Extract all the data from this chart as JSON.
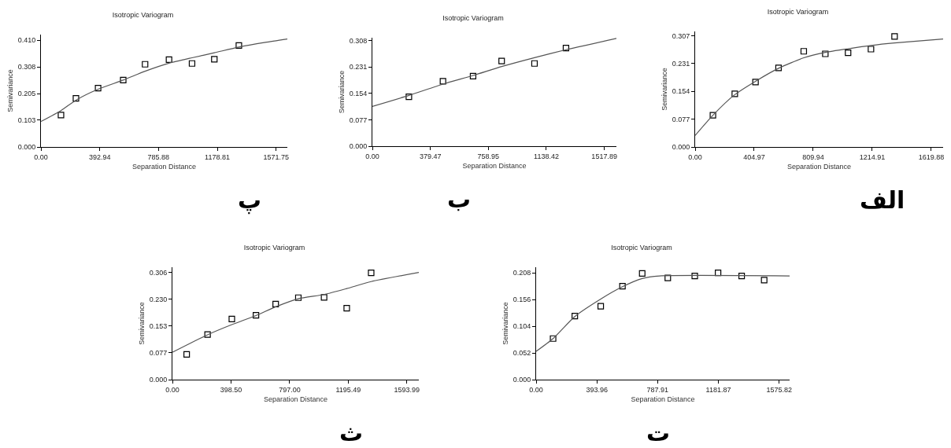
{
  "chart_data": [
    {
      "type": "scatter",
      "title": "Isotropic Variogram",
      "xlabel": "Separation Distance",
      "ylabel": "Semivariance",
      "annotations": [
        "پ"
      ],
      "grid": false,
      "xlim": [
        0,
        1647
      ],
      "xticks": [
        {
          "value": 0,
          "label": "0.00"
        },
        392.94,
        785.88,
        1178.81,
        1571.75
      ],
      "ylim": [
        0,
        0.432
      ],
      "yticks": [
        {
          "value": 0,
          "label": "0.000"
        },
        {
          "value": 0.103,
          "label": "0.103"
        },
        {
          "value": 0.205,
          "label": "0.205"
        },
        {
          "value": 0.308,
          "label": "0.308"
        },
        {
          "value": 0.41,
          "label": "0.410"
        }
      ],
      "series": [
        {
          "marker": "square",
          "color": "#000000",
          "x": [
            134,
            234,
            382,
            550,
            696,
            856,
            1010,
            1159,
            1323
          ],
          "values": [
            0.123,
            0.187,
            0.226,
            0.257,
            0.318,
            0.336,
            0.321,
            0.337,
            0.39
          ]
        },
        {
          "type": "line",
          "marker": "none",
          "color": "#555555",
          "x": [
            0,
            134,
            234,
            382,
            550,
            696,
            856,
            1010,
            1159,
            1323,
            1500,
            1647
          ],
          "values": [
            0.098,
            0.14,
            0.18,
            0.222,
            0.257,
            0.291,
            0.322,
            0.343,
            0.362,
            0.384,
            0.402,
            0.415
          ]
        }
      ]
    },
    {
      "type": "scatter",
      "title": "Isotropic Variogram",
      "xlabel": "Separation Distance",
      "ylabel": "Semivariance",
      "annotations": [
        "ب"
      ],
      "grid": false,
      "xlim": [
        0,
        1597
      ],
      "xticks": [
        {
          "value": 0,
          "label": "0.00"
        },
        379.47,
        758.95,
        1138.42,
        1517.89
      ],
      "ylim": [
        0,
        0.316
      ],
      "yticks": [
        {
          "value": 0,
          "label": "0.000"
        },
        0.077,
        0.154,
        0.231,
        0.308
      ],
      "series": [
        {
          "marker": "square",
          "color": "#000000",
          "x": [
            239,
            462,
            659,
            846,
            1061,
            1267
          ],
          "values": [
            0.144,
            0.189,
            0.204,
            0.248,
            0.241,
            0.286
          ]
        },
        {
          "type": "line",
          "marker": "none",
          "color": "#555555",
          "x": [
            0,
            239,
            462,
            659,
            846,
            1061,
            1267,
            1597
          ],
          "values": [
            0.116,
            0.148,
            0.181,
            0.206,
            0.232,
            0.258,
            0.281,
            0.314
          ]
        }
      ]
    },
    {
      "type": "scatter",
      "title": "Isotropic Variogram",
      "xlabel": "Separation Distance",
      "ylabel": "Semivariance",
      "annotations": [
        "الف"
      ],
      "grid": false,
      "xlim": [
        0,
        1701
      ],
      "xticks": [
        {
          "value": 0,
          "label": "0.00"
        },
        404.97,
        809.94,
        1214.91,
        1619.88
      ],
      "ylim": [
        0,
        0.32
      ],
      "yticks": [
        {
          "value": 0,
          "label": "0.000"
        },
        0.077,
        0.154,
        0.231,
        0.307
      ],
      "series": [
        {
          "marker": "square",
          "color": "#000000",
          "x": [
            122,
            272,
            414,
            572,
            745,
            893,
            1049,
            1206,
            1368
          ],
          "values": [
            0.088,
            0.147,
            0.18,
            0.219,
            0.265,
            0.258,
            0.261,
            0.271,
            0.306
          ]
        },
        {
          "type": "line",
          "marker": "none",
          "color": "#555555",
          "x": [
            0,
            122,
            272,
            414,
            572,
            745,
            893,
            1049,
            1206,
            1368,
            1701
          ],
          "values": [
            0.032,
            0.088,
            0.145,
            0.182,
            0.218,
            0.247,
            0.262,
            0.272,
            0.281,
            0.288,
            0.299
          ]
        }
      ]
    },
    {
      "type": "scatter",
      "title": "Isotropic Variogram",
      "xlabel": "Separation Distance",
      "ylabel": "Semivariance",
      "annotations": [
        "ث"
      ],
      "grid": false,
      "xlim": [
        0,
        1675
      ],
      "xticks": [
        {
          "value": 0,
          "label": "0.00"
        },
        {
          "value": 398.5,
          "label": "398.50"
        },
        {
          "value": 797,
          "label": "797.00"
        },
        1195.49,
        1593.99
      ],
      "ylim": [
        0,
        0.321
      ],
      "yticks": [
        {
          "value": 0,
          "label": "0.000"
        },
        0.077,
        0.153,
        {
          "value": 0.23,
          "label": "0.230"
        },
        0.306
      ],
      "series": [
        {
          "marker": "square",
          "color": "#000000",
          "x": [
            97,
            239,
            404,
            568,
            702,
            856,
            1031,
            1185,
            1351
          ],
          "values": [
            0.072,
            0.129,
            0.173,
            0.184,
            0.216,
            0.234,
            0.235,
            0.204,
            0.305
          ]
        },
        {
          "type": "line",
          "marker": "none",
          "color": "#555555",
          "x": [
            0,
            239,
            404,
            568,
            702,
            856,
            1031,
            1185,
            1351,
            1675
          ],
          "values": [
            0.078,
            0.128,
            0.157,
            0.183,
            0.208,
            0.231,
            0.243,
            0.26,
            0.28,
            0.306
          ]
        }
      ]
    },
    {
      "type": "scatter",
      "title": "Isotropic Variogram",
      "xlabel": "Separation Distance",
      "ylabel": "Semivariance",
      "annotations": [
        "ت"
      ],
      "grid": false,
      "xlim": [
        0,
        1644
      ],
      "xticks": [
        {
          "value": 0,
          "label": "0.00"
        },
        393.96,
        787.91,
        1181.87,
        1575.82
      ],
      "ylim": [
        0,
        0.219
      ],
      "yticks": [
        {
          "value": 0,
          "label": "0.000"
        },
        0.052,
        0.104,
        0.156,
        0.208
      ],
      "series": [
        {
          "marker": "square",
          "color": "#000000",
          "x": [
            110,
            251,
            419,
            560,
            688,
            854,
            1029,
            1180,
            1333,
            1479
          ],
          "values": [
            0.08,
            0.124,
            0.143,
            0.182,
            0.207,
            0.198,
            0.202,
            0.208,
            0.202,
            0.194
          ]
        },
        {
          "type": "line",
          "marker": "none",
          "color": "#555555",
          "x": [
            0,
            110,
            251,
            419,
            560,
            688,
            800,
            1644
          ],
          "values": [
            0.055,
            0.08,
            0.123,
            0.157,
            0.181,
            0.197,
            0.202,
            0.202
          ]
        }
      ]
    }
  ]
}
